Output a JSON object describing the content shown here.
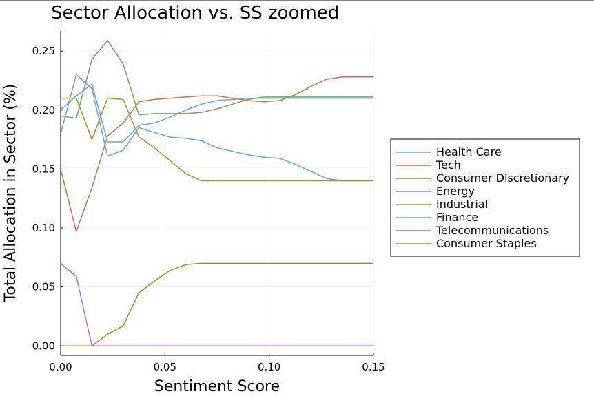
{
  "chart_data": {
    "type": "line",
    "title": "Sector Allocation vs. SS zoomed",
    "xlabel": "Sentiment Score",
    "ylabel": "Total Allocation in Sector (%)",
    "xlim": [
      0,
      0.15
    ],
    "ylim": [
      -0.008,
      0.267
    ],
    "xticks": [
      0.0,
      0.05,
      0.1,
      0.15
    ],
    "xtick_labels": [
      "0.00",
      "0.05",
      "0.10",
      "0.15"
    ],
    "yticks": [
      0.0,
      0.05,
      0.1,
      0.15,
      0.2,
      0.25
    ],
    "ytick_labels": [
      "0.00",
      "0.05",
      "0.10",
      "0.15",
      "0.20",
      "0.25"
    ],
    "grid": true,
    "legend_position": "outside-right",
    "series": [
      {
        "name": "Health Care",
        "color": "#6a9fe0",
        "x": [
          0,
          0.0075,
          0.015,
          0.0225,
          0.03,
          0.0375,
          0.045,
          0.0525,
          0.06,
          0.0675,
          0.075,
          0.0825,
          0.09,
          0.0975,
          0.105,
          0.1125,
          0.12,
          0.1275,
          0.135,
          0.1425,
          0.15
        ],
        "y": [
          0.18,
          0.23,
          0.218,
          0.161,
          0.166,
          0.185,
          0.181,
          0.177,
          0.176,
          0.174,
          0.168,
          0.165,
          0.162,
          0.16,
          0.159,
          0.154,
          0.148,
          0.142,
          0.14,
          0.14,
          0.14
        ]
      },
      {
        "name": "Tech",
        "color": "#c8714a",
        "x": [
          0,
          0.0075,
          0.015,
          0.0225,
          0.03,
          0.0375,
          0.045,
          0.0525,
          0.06,
          0.0675,
          0.075,
          0.0825,
          0.09,
          0.0975,
          0.105,
          0.1125,
          0.12,
          0.1275,
          0.135,
          0.1425,
          0.15
        ],
        "y": [
          0.15,
          0.097,
          0.134,
          0.178,
          0.189,
          0.207,
          0.209,
          0.21,
          0.211,
          0.212,
          0.212,
          0.21,
          0.208,
          0.207,
          0.208,
          0.213,
          0.22,
          0.226,
          0.228,
          0.228,
          0.228
        ]
      },
      {
        "name": "Consumer Discretionary",
        "color": "#72a35a",
        "x": [
          0,
          0.0075,
          0.015,
          0.0225,
          0.03,
          0.0375,
          0.045,
          0.0525,
          0.06,
          0.0675,
          0.075,
          0.0825,
          0.09,
          0.0975,
          0.105,
          0.1125,
          0.12,
          0.1275,
          0.135,
          0.1425,
          0.15
        ],
        "y": [
          0.195,
          0.193,
          0.243,
          0.259,
          0.239,
          0.196,
          0.197,
          0.197,
          0.197,
          0.198,
          0.201,
          0.205,
          0.209,
          0.211,
          0.211,
          0.211,
          0.211,
          0.211,
          0.211,
          0.211,
          0.211
        ]
      },
      {
        "name": "Energy",
        "color": "#aa78cf",
        "x": [
          0,
          0.0075,
          0.015,
          0.0225,
          0.03,
          0.0375,
          0.045,
          0.0525,
          0.06,
          0.0675,
          0.075,
          0.0825,
          0.09,
          0.0975,
          0.105,
          0.1125,
          0.12,
          0.1275,
          0.135,
          0.1425,
          0.15
        ],
        "y": [
          0.07,
          0.059,
          0.0,
          0.0,
          0.0,
          0.0,
          0.0,
          0.0,
          0.0,
          0.0,
          0.0,
          0.0,
          0.0,
          0.0,
          0.0,
          0.0,
          0.0,
          0.0,
          0.0,
          0.0,
          0.0
        ]
      },
      {
        "name": "Industrial",
        "color": "#a8912e",
        "x": [
          0,
          0.0075,
          0.015,
          0.0225,
          0.03,
          0.0375,
          0.045,
          0.0525,
          0.06,
          0.0675,
          0.075,
          0.0825,
          0.09,
          0.0975,
          0.105,
          0.1125,
          0.12,
          0.1275,
          0.135,
          0.1425,
          0.15
        ],
        "y": [
          0.21,
          0.21,
          0.175,
          0.21,
          0.209,
          0.177,
          0.168,
          0.157,
          0.146,
          0.14,
          0.14,
          0.14,
          0.14,
          0.14,
          0.14,
          0.14,
          0.14,
          0.14,
          0.14,
          0.14,
          0.14
        ]
      },
      {
        "name": "Finance",
        "color": "#66ada5",
        "x": [
          0,
          0.0075,
          0.015,
          0.0225,
          0.03,
          0.0375,
          0.045,
          0.0525,
          0.06,
          0.0675,
          0.075,
          0.0825,
          0.09,
          0.0975,
          0.105,
          0.1125,
          0.12,
          0.1275,
          0.135,
          0.1425,
          0.15
        ],
        "y": [
          0.2,
          0.212,
          0.222,
          0.173,
          0.173,
          0.187,
          0.189,
          0.194,
          0.2,
          0.205,
          0.208,
          0.209,
          0.21,
          0.21,
          0.21,
          0.21,
          0.21,
          0.21,
          0.21,
          0.21,
          0.21
        ]
      },
      {
        "name": "Telecommunications",
        "color": "#d45fa9",
        "x": [
          0,
          0.15
        ],
        "y": [
          0.0,
          0.0
        ]
      },
      {
        "name": "Consumer Staples",
        "color": "#a8852e",
        "x": [
          0,
          0.0075,
          0.015,
          0.0225,
          0.03,
          0.0375,
          0.045,
          0.0525,
          0.06,
          0.0675,
          0.075,
          0.0825,
          0.09,
          0.0975,
          0.105,
          0.1125,
          0.12,
          0.1275,
          0.135,
          0.1425,
          0.15
        ],
        "y": [
          0.0,
          0.0,
          0.0,
          0.01,
          0.017,
          0.045,
          0.055,
          0.064,
          0.069,
          0.07,
          0.07,
          0.07,
          0.07,
          0.07,
          0.07,
          0.07,
          0.07,
          0.07,
          0.07,
          0.07,
          0.07
        ]
      }
    ]
  }
}
